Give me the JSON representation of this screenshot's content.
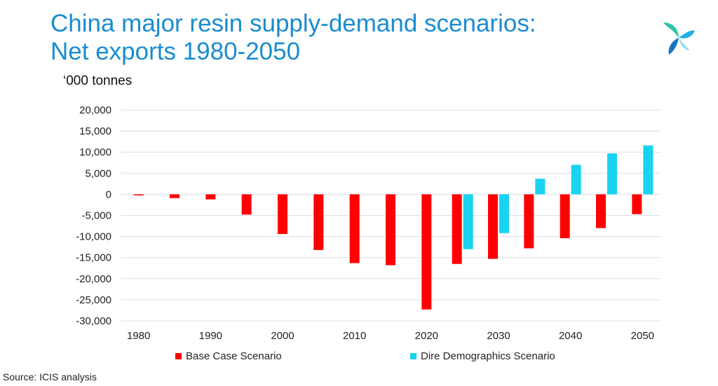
{
  "title_line1": "China major resin supply-demand scenarios:",
  "title_line2": "Net exports 1980-2050",
  "source": "Source: ICIS analysis",
  "logo_icon": "icis-logo-icon",
  "chart_data": {
    "type": "bar",
    "ylabel": "‘000 tonnes",
    "ylim": [
      -30000,
      20000
    ],
    "yticks": [
      20000,
      15000,
      10000,
      5000,
      0,
      -5000,
      -10000,
      -15000,
      -20000,
      -25000,
      -30000
    ],
    "ytick_labels": [
      "20,000",
      "15,000",
      "10,000",
      "5,000",
      "0",
      "-5,000",
      "-10,000",
      "-15,000",
      "-20,000",
      "-25,000",
      "-30,000"
    ],
    "x": [
      1980,
      1985,
      1990,
      1995,
      2000,
      2005,
      2010,
      2015,
      2020,
      2025,
      2030,
      2035,
      2040,
      2045,
      2050
    ],
    "xtick_labels": [
      "1980",
      "1990",
      "2000",
      "2010",
      "2020",
      "2030",
      "2040",
      "2050"
    ],
    "xtick_values": [
      1980,
      1990,
      2000,
      2010,
      2020,
      2030,
      2040,
      2050
    ],
    "grid": true,
    "legend_position": "bottom",
    "series": [
      {
        "name": "Base Case Scenario",
        "color": "#ff0000",
        "values": [
          -200,
          -900,
          -1200,
          -4800,
          -9400,
          -13200,
          -16300,
          -16800,
          -27300,
          -16500,
          -15300,
          -12800,
          -10400,
          -8000,
          -4700
        ]
      },
      {
        "name": "Dire Demographics Scenario",
        "color": "#19d3f0",
        "values": [
          null,
          null,
          null,
          null,
          null,
          null,
          null,
          null,
          null,
          -13000,
          -9200,
          3700,
          7000,
          9700,
          11600
        ]
      }
    ]
  }
}
